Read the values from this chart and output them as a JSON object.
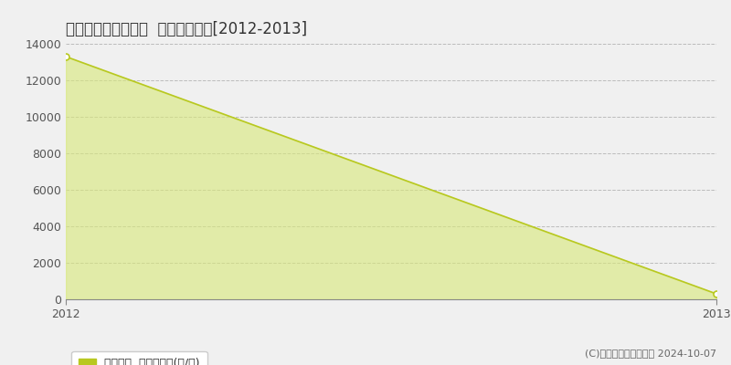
{
  "title": "高岡郡檮原町神在居  林地価格推移[2012-2013]",
  "x_values": [
    2012,
    2013
  ],
  "y_values": [
    13300,
    300
  ],
  "y_min": 0,
  "y_max": 14000,
  "x_min": 2012,
  "x_max": 2013,
  "line_color": "#b8c820",
  "fill_color": "#d8e878",
  "fill_alpha": 0.6,
  "marker_color": "#b8c820",
  "marker_size": 5,
  "background_color": "#f0f0f0",
  "plot_bg_color": "#f0f0f0",
  "grid_color": "#999999",
  "grid_style": "--",
  "grid_alpha": 0.6,
  "yticks": [
    0,
    2000,
    4000,
    6000,
    8000,
    10000,
    12000,
    14000
  ],
  "xticks": [
    2012,
    2013
  ],
  "legend_label": "林地価格  平均坪単価(円/坪)",
  "copyright_text": "(C)土地価格ドットコム 2024-10-07",
  "title_fontsize": 12,
  "axis_fontsize": 9,
  "legend_fontsize": 9,
  "copyright_fontsize": 8
}
